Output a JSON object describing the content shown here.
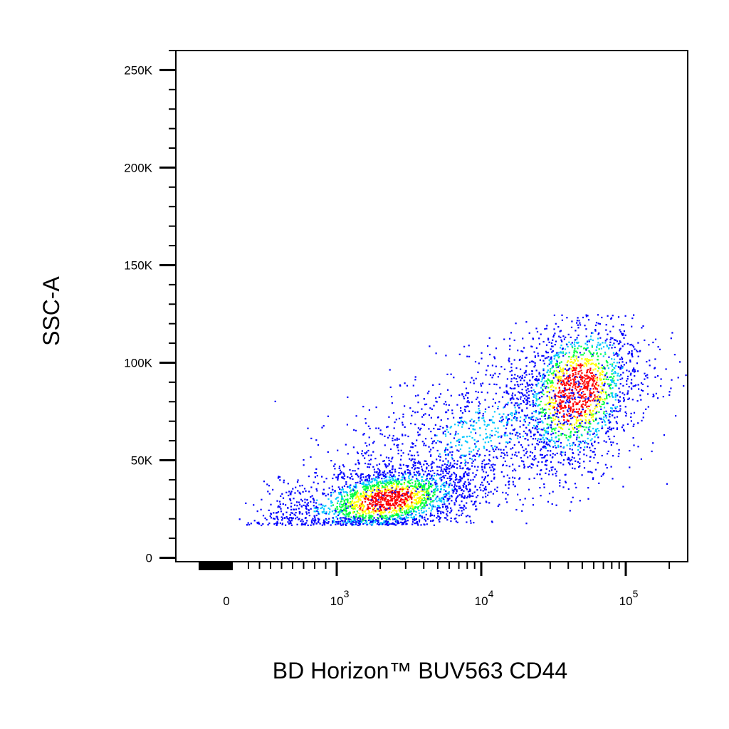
{
  "chart_data": {
    "type": "scatter",
    "title": "",
    "xlabel": "BD Horizon™ BUV563 CD44",
    "ylabel": "SSC-A",
    "x_scale": "biexponential",
    "y_scale": "linear",
    "xlim": [
      -200,
      250000
    ],
    "ylim": [
      -2000,
      260000
    ],
    "x_ticks": [
      {
        "value": 0,
        "label": "0",
        "exp": ""
      },
      {
        "value": 1000,
        "label": "10",
        "exp": "3"
      },
      {
        "value": 10000,
        "label": "10",
        "exp": "4"
      },
      {
        "value": 100000,
        "label": "10",
        "exp": "5"
      }
    ],
    "y_ticks": [
      {
        "value": 0,
        "label": "0"
      },
      {
        "value": 50000,
        "label": "50K"
      },
      {
        "value": 100000,
        "label": "100K"
      },
      {
        "value": 150000,
        "label": "150K"
      },
      {
        "value": 200000,
        "label": "200K"
      },
      {
        "value": 250000,
        "label": "250K"
      }
    ],
    "grid": false,
    "legend": "none",
    "colormap": [
      "#0000ff",
      "#00c8ff",
      "#00ff40",
      "#ffff00",
      "#ff0000"
    ],
    "populations": [
      {
        "name": "",
        "x_center": 2200,
        "y_center": 30000,
        "x_spread_decades": 0.32,
        "y_spread": 9000,
        "count": 2200,
        "peak_density": 0.9
      },
      {
        "name": "",
        "x_center": 45000,
        "y_center": 85000,
        "x_spread_decades": 0.22,
        "y_spread": 20000,
        "count": 1700,
        "peak_density": 1.0
      },
      {
        "name": "",
        "x_center": 10000,
        "y_center": 65000,
        "x_spread_decades": 0.5,
        "y_spread": 18000,
        "count": 1300,
        "peak_density": 0.35
      }
    ]
  }
}
